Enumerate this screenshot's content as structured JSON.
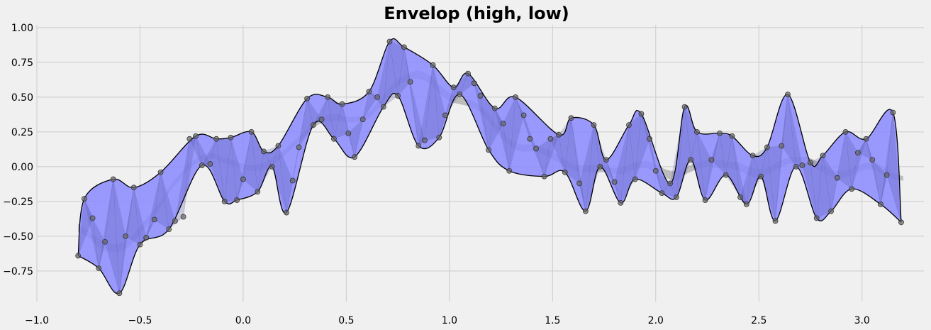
{
  "chart_data": {
    "type": "area",
    "title": "Envelop (high, low)",
    "xlabel": "",
    "ylabel": "",
    "xlim": [
      -1.0,
      3.3
    ],
    "ylim": [
      -0.97,
      1.02
    ],
    "xticks": [
      -1.0,
      -0.5,
      0.0,
      0.5,
      1.0,
      1.5,
      2.0,
      2.5,
      3.0
    ],
    "xtick_labels": [
      "−1.0",
      "−0.5",
      "0.0",
      "0.5",
      "1.0",
      "1.5",
      "2.0",
      "2.5",
      "3.0"
    ],
    "yticks": [
      -0.75,
      -0.5,
      -0.25,
      0.0,
      0.25,
      0.5,
      0.75,
      1.0
    ],
    "ytick_labels": [
      "−0.75",
      "−0.50",
      "−0.25",
      "0.00",
      "0.25",
      "0.50",
      "0.75",
      "1.00"
    ],
    "grid": true,
    "colors": {
      "background": "#f0f0f0",
      "grid": "#cbcbcb",
      "envelope_fill": "#8888ff",
      "envelope_line": "#000000",
      "triangle_fill": "#5555aa",
      "signal_band": "#999999",
      "points": "#666666"
    },
    "points_x": [
      -0.8,
      -0.77,
      -0.73,
      -0.7,
      -0.67,
      -0.63,
      -0.6,
      -0.57,
      -0.53,
      -0.5,
      -0.47,
      -0.43,
      -0.4,
      -0.36,
      -0.33,
      -0.29,
      -0.26,
      -0.23,
      -0.2,
      -0.16,
      -0.13,
      -0.09,
      -0.06,
      -0.03,
      0.0,
      0.04,
      0.07,
      0.1,
      0.14,
      0.17,
      0.21,
      0.24,
      0.27,
      0.31,
      0.34,
      0.38,
      0.41,
      0.44,
      0.48,
      0.51,
      0.54,
      0.58,
      0.61,
      0.65,
      0.68,
      0.71,
      0.75,
      0.78,
      0.81,
      0.85,
      0.88,
      0.92,
      0.95,
      0.98,
      1.02,
      1.05,
      1.09,
      1.12,
      1.15,
      1.19,
      1.22,
      1.26,
      1.29,
      1.32,
      1.36,
      1.39,
      1.42,
      1.46,
      1.49,
      1.53,
      1.56,
      1.59,
      1.63,
      1.66,
      1.7,
      1.73,
      1.76,
      1.8,
      1.83,
      1.87,
      1.9,
      1.93,
      1.97,
      2.0,
      2.03,
      2.07,
      2.1,
      2.14,
      2.17,
      2.2,
      2.24,
      2.27,
      2.31,
      2.34,
      2.37,
      2.41,
      2.44,
      2.47,
      2.51,
      2.54,
      2.58,
      2.61,
      2.64,
      2.68,
      2.71,
      2.75,
      2.78,
      2.81,
      2.85,
      2.88,
      2.92,
      2.95,
      2.98,
      3.02,
      3.05,
      3.09,
      3.12,
      3.15,
      3.19
    ],
    "points_y": [
      -0.64,
      -0.23,
      -0.37,
      -0.73,
      -0.54,
      -0.09,
      -0.91,
      -0.5,
      -0.15,
      -0.56,
      -0.51,
      -0.38,
      -0.04,
      -0.45,
      -0.39,
      -0.36,
      0.2,
      0.22,
      0.01,
      0.02,
      0.2,
      -0.25,
      0.21,
      -0.24,
      -0.09,
      0.25,
      -0.18,
      0.11,
      0.0,
      0.15,
      -0.33,
      -0.1,
      0.14,
      0.49,
      0.3,
      0.34,
      0.5,
      0.2,
      0.45,
      0.24,
      0.07,
      0.34,
      0.54,
      0.5,
      0.43,
      0.9,
      0.51,
      0.86,
      0.61,
      0.15,
      0.19,
      0.73,
      0.21,
      0.37,
      0.57,
      0.52,
      0.67,
      0.6,
      0.51,
      0.12,
      0.42,
      0.31,
      -0.03,
      0.5,
      0.37,
      0.2,
      0.13,
      -0.07,
      0.2,
      0.23,
      -0.04,
      0.35,
      -0.12,
      -0.32,
      0.3,
      0.0,
      0.05,
      -0.11,
      -0.26,
      0.3,
      -0.09,
      0.38,
      0.2,
      -0.03,
      -0.19,
      -0.12,
      -0.22,
      0.43,
      0.05,
      0.25,
      -0.24,
      0.05,
      0.24,
      -0.06,
      0.22,
      -0.22,
      -0.27,
      0.08,
      -0.07,
      0.14,
      -0.39,
      0.15,
      0.52,
      0.0,
      0.01,
      0.03,
      -0.37,
      0.08,
      -0.32,
      -0.08,
      0.25,
      -0.16,
      0.1,
      0.2,
      0.05,
      -0.27,
      -0.06,
      0.39,
      -0.4
    ],
    "signal_band_x": [
      -0.8,
      -0.75,
      -0.7,
      -0.65,
      -0.6,
      -0.55,
      -0.5,
      -0.45,
      -0.4,
      -0.35,
      -0.3,
      -0.25,
      -0.2,
      -0.15,
      -0.1,
      -0.05,
      0.0,
      0.05,
      0.1,
      0.15,
      0.2,
      0.25,
      0.3,
      0.35,
      0.4,
      0.45,
      0.5,
      0.55,
      0.6,
      0.65,
      0.7,
      0.75,
      0.8,
      0.85,
      0.9,
      0.95,
      1.0,
      1.05,
      1.1,
      1.15,
      1.2,
      1.25,
      1.3,
      1.35,
      1.4,
      1.45,
      1.5,
      1.55,
      1.6,
      1.65,
      1.7,
      1.75,
      1.8,
      1.85,
      1.9,
      1.95,
      2.0,
      2.05,
      2.1,
      2.15,
      2.2,
      2.25,
      2.3,
      2.35,
      2.4,
      2.45,
      2.5,
      2.55,
      2.6,
      2.65,
      2.7,
      2.75,
      2.8,
      2.85,
      2.9,
      2.95,
      3.0,
      3.05,
      3.1,
      3.15,
      3.2
    ],
    "signal_band_high": [
      -0.41,
      -0.46,
      -0.52,
      -0.55,
      -0.55,
      -0.51,
      -0.43,
      -0.34,
      -0.24,
      -0.13,
      -0.04,
      0.04,
      0.08,
      0.1,
      0.07,
      0.05,
      0.02,
      0.01,
      0.03,
      0.07,
      0.12,
      0.19,
      0.26,
      0.33,
      0.37,
      0.38,
      0.36,
      0.36,
      0.38,
      0.46,
      0.55,
      0.63,
      0.67,
      0.69,
      0.66,
      0.59,
      0.53,
      0.5,
      0.48,
      0.44,
      0.36,
      0.26,
      0.19,
      0.16,
      0.16,
      0.14,
      0.11,
      0.06,
      0.02,
      0.01,
      0.01,
      0.0,
      -0.01,
      0.0,
      0.03,
      0.04,
      0.02,
      -0.02,
      -0.03,
      0.0,
      0.03,
      0.05,
      0.05,
      0.04,
      0.03,
      0.0,
      -0.02,
      0.0,
      0.04,
      0.07,
      0.07,
      0.06,
      0.02,
      -0.02,
      -0.03,
      -0.01,
      0.02,
      0.03,
      0.0,
      -0.04,
      -0.07
    ],
    "signal_band_low": [
      -0.47,
      -0.51,
      -0.58,
      -0.61,
      -0.61,
      -0.57,
      -0.49,
      -0.39,
      -0.29,
      -0.17,
      -0.08,
      0.0,
      0.04,
      0.06,
      0.03,
      0.01,
      -0.02,
      -0.03,
      -0.02,
      0.02,
      0.08,
      0.15,
      0.22,
      0.29,
      0.32,
      0.33,
      0.32,
      0.32,
      0.34,
      0.41,
      0.5,
      0.58,
      0.62,
      0.63,
      0.6,
      0.53,
      0.47,
      0.45,
      0.43,
      0.39,
      0.31,
      0.21,
      0.14,
      0.11,
      0.11,
      0.09,
      0.05,
      0.01,
      -0.03,
      -0.04,
      -0.04,
      -0.04,
      -0.05,
      -0.05,
      -0.02,
      -0.01,
      -0.04,
      -0.08,
      -0.1,
      -0.05,
      -0.02,
      0.0,
      -0.01,
      -0.01,
      -0.03,
      -0.06,
      -0.08,
      -0.05,
      -0.01,
      0.02,
      0.02,
      0.01,
      -0.03,
      -0.07,
      -0.08,
      -0.06,
      -0.03,
      -0.02,
      -0.05,
      -0.09,
      -0.1
    ]
  }
}
